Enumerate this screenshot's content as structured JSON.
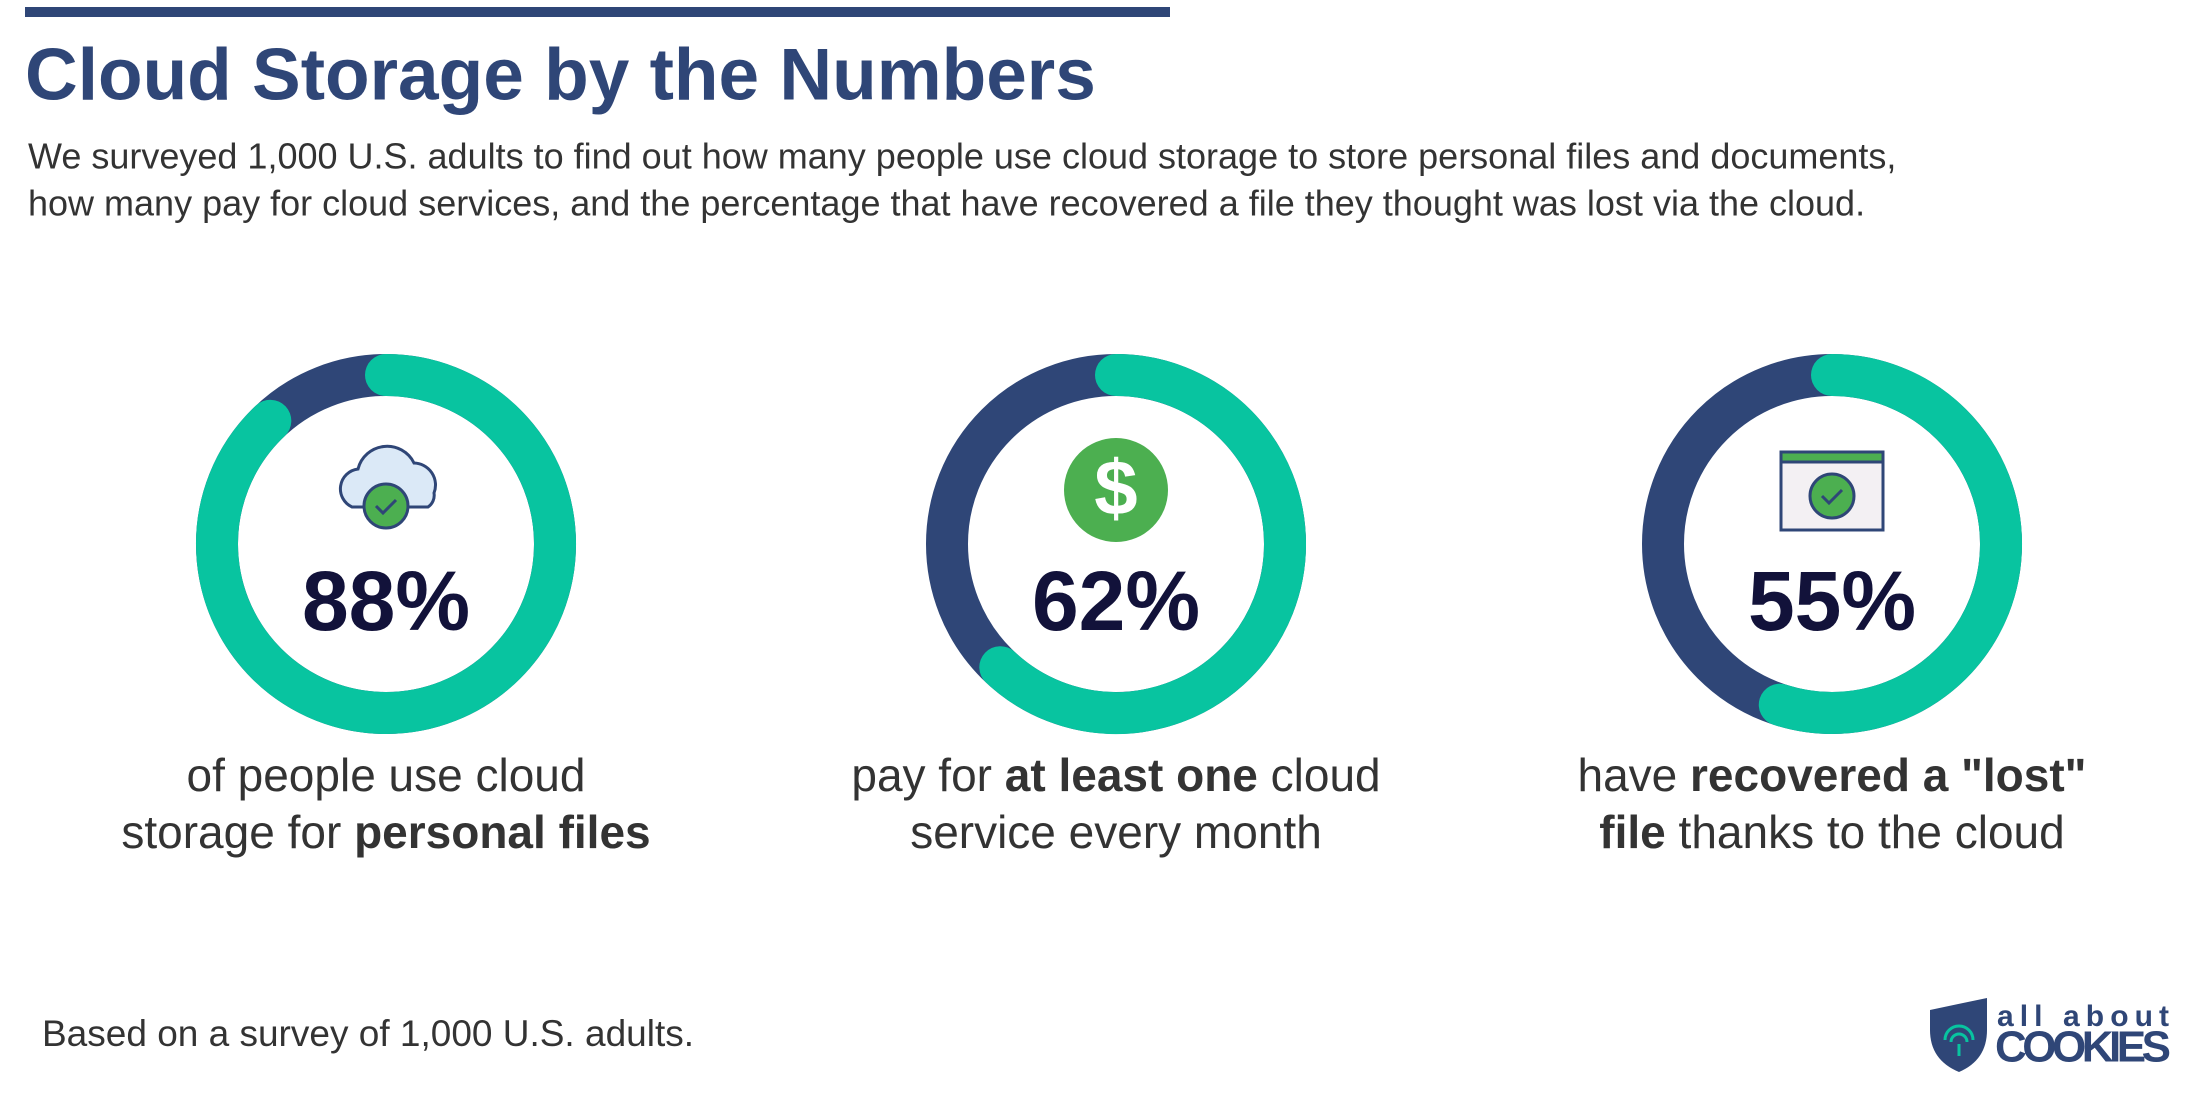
{
  "header": {
    "title": "Cloud Storage by the Numbers",
    "subtitle": [
      "We surveyed 1,000 U.S. adults to find out how many people use cloud storage to store personal files and documents,",
      "how many pay for cloud services, and the percentage that have recovered a file they thought was lost via the cloud."
    ]
  },
  "chart_data": [
    {
      "type": "donut",
      "values": [
        88
      ],
      "value_labels": [
        "88%"
      ],
      "color": "#08c4a0",
      "track_color": "#2f4677",
      "caption": [
        [
          {
            "text": "of people use cloud",
            "bold": false
          }
        ],
        [
          {
            "text": "storage for ",
            "bold": false
          },
          {
            "text": "personal files",
            "bold": true
          }
        ]
      ]
    },
    {
      "type": "donut",
      "values": [
        62
      ],
      "value_labels": [
        "62%"
      ],
      "color": "#08c4a0",
      "track_color": "#2f4677",
      "caption": [
        [
          {
            "text": "pay for ",
            "bold": false
          },
          {
            "text": "at least one",
            "bold": true
          },
          {
            "text": " cloud",
            "bold": false
          }
        ],
        [
          {
            "text": "service every month",
            "bold": false
          }
        ]
      ]
    },
    {
      "type": "donut",
      "values": [
        55
      ],
      "value_labels": [
        "55%"
      ],
      "color": "#08c4a0",
      "track_color": "#2f4677",
      "caption": [
        [
          {
            "text": "have ",
            "bold": false
          },
          {
            "text": "recovered a \"lost\"",
            "bold": true
          }
        ],
        [
          {
            "text": "file",
            "bold": true
          },
          {
            "text": " thanks to the cloud",
            "bold": false
          }
        ]
      ]
    }
  ],
  "note": "Based on a survey of 1,000 U.S. adults.",
  "logo": {
    "line1": "all about",
    "line2": "COOKIES"
  }
}
